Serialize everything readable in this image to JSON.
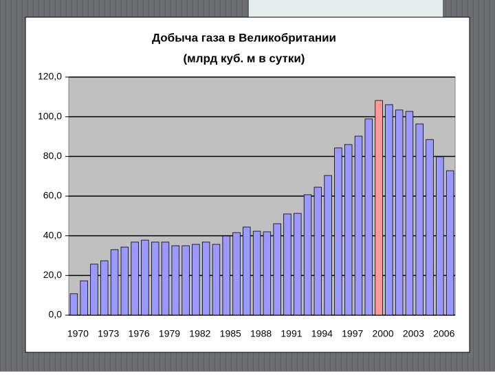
{
  "chart_data": {
    "type": "bar",
    "title": "Добыча газа в Великобритании",
    "subtitle": "(млрд куб. м в сутки)",
    "categories": [
      "1970",
      null,
      null,
      "1973",
      null,
      null,
      "1976",
      null,
      null,
      "1979",
      null,
      null,
      "1982",
      null,
      null,
      "1985",
      null,
      null,
      "1988",
      null,
      null,
      "1991",
      null,
      null,
      "1994",
      null,
      null,
      "1997",
      null,
      null,
      "2000",
      null,
      null,
      "2003",
      null,
      null,
      "2006",
      null
    ],
    "values": [
      10.8,
      17.3,
      25.7,
      27.4,
      33.0,
      34.3,
      36.8,
      37.8,
      36.8,
      36.8,
      35.0,
      35.0,
      35.7,
      36.8,
      35.7,
      39.9,
      41.6,
      44.4,
      42.3,
      42.0,
      46.1,
      51.0,
      51.3,
      60.7,
      64.5,
      70.4,
      84.3,
      86.0,
      90.2,
      98.9,
      108.2,
      106.1,
      103.4,
      102.7,
      96.4,
      88.5,
      79.8,
      72.8
    ],
    "colors": [
      "#9999ff",
      "#9999ff",
      "#9999ff",
      "#9999ff",
      "#9999ff",
      "#9999ff",
      "#9999ff",
      "#9999ff",
      "#9999ff",
      "#9999ff",
      "#9999ff",
      "#9999ff",
      "#9999ff",
      "#9999ff",
      "#9999ff",
      "#9999ff",
      "#9999ff",
      "#9999ff",
      "#9999ff",
      "#9999ff",
      "#9999ff",
      "#9999ff",
      "#9999ff",
      "#9999ff",
      "#9999ff",
      "#9999ff",
      "#9999ff",
      "#9999ff",
      "#9999ff",
      "#9999ff",
      "#ff9999",
      "#9999ff",
      "#9999ff",
      "#9999ff",
      "#9999ff",
      "#9999ff",
      "#9999ff",
      "#9999ff"
    ],
    "ylim": [
      0,
      120
    ],
    "yticks": [
      {
        "value": 0,
        "label": "0,0"
      },
      {
        "value": 20,
        "label": "20,0"
      },
      {
        "value": 40,
        "label": "40,0"
      },
      {
        "value": 60,
        "label": "60,0"
      },
      {
        "value": 80,
        "label": "80,0"
      },
      {
        "value": 100,
        "label": "100,0"
      },
      {
        "value": 120,
        "label": "120,0"
      }
    ],
    "grid": true
  }
}
